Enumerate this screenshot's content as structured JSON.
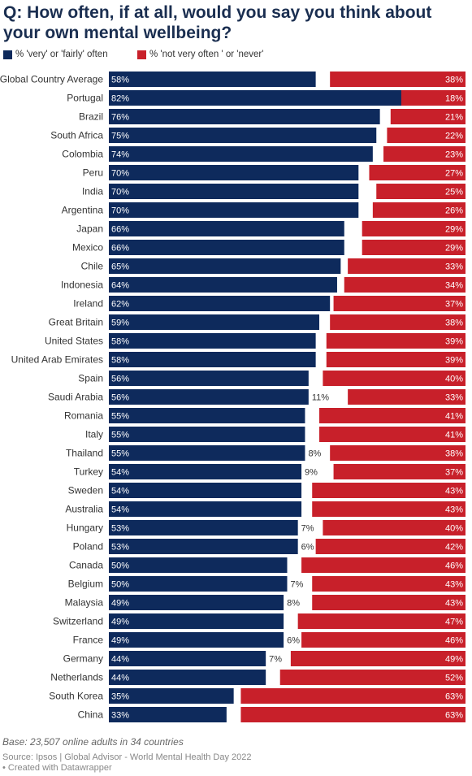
{
  "chart_data": {
    "type": "bar",
    "title": "Q: How often, if at all, would you say you think about your own mental wellbeing?",
    "series": [
      {
        "name": "% 'very' or 'fairly' often",
        "color": "#0e2a5c"
      },
      {
        "name": "% 'not very often ' or 'never'",
        "color": "#c8202a"
      }
    ],
    "rows": [
      {
        "label": "Global Country Average",
        "often": 58,
        "notoften": 38,
        "gap_label": ""
      },
      {
        "label": "Portugal",
        "often": 82,
        "notoften": 18,
        "gap_label": ""
      },
      {
        "label": "Brazil",
        "often": 76,
        "notoften": 21,
        "gap_label": ""
      },
      {
        "label": "South Africa",
        "often": 75,
        "notoften": 22,
        "gap_label": ""
      },
      {
        "label": "Colombia",
        "often": 74,
        "notoften": 23,
        "gap_label": ""
      },
      {
        "label": "Peru",
        "often": 70,
        "notoften": 27,
        "gap_label": ""
      },
      {
        "label": "India",
        "often": 70,
        "notoften": 25,
        "gap_label": ""
      },
      {
        "label": "Argentina",
        "often": 70,
        "notoften": 26,
        "gap_label": ""
      },
      {
        "label": "Japan",
        "often": 66,
        "notoften": 29,
        "gap_label": ""
      },
      {
        "label": "Mexico",
        "often": 66,
        "notoften": 29,
        "gap_label": ""
      },
      {
        "label": "Chile",
        "often": 65,
        "notoften": 33,
        "gap_label": ""
      },
      {
        "label": "Indonesia",
        "often": 64,
        "notoften": 34,
        "gap_label": ""
      },
      {
        "label": "Ireland",
        "often": 62,
        "notoften": 37,
        "gap_label": ""
      },
      {
        "label": "Great Britain",
        "often": 59,
        "notoften": 38,
        "gap_label": ""
      },
      {
        "label": "United States",
        "often": 58,
        "notoften": 39,
        "gap_label": ""
      },
      {
        "label": "United Arab Emirates",
        "often": 58,
        "notoften": 39,
        "gap_label": ""
      },
      {
        "label": "Spain",
        "often": 56,
        "notoften": 40,
        "gap_label": ""
      },
      {
        "label": "Saudi Arabia",
        "often": 56,
        "notoften": 33,
        "gap_label": "11%"
      },
      {
        "label": "Romania",
        "often": 55,
        "notoften": 41,
        "gap_label": ""
      },
      {
        "label": "Italy",
        "often": 55,
        "notoften": 41,
        "gap_label": ""
      },
      {
        "label": "Thailand",
        "often": 55,
        "notoften": 38,
        "gap_label": "8%"
      },
      {
        "label": "Turkey",
        "often": 54,
        "notoften": 37,
        "gap_label": "9%"
      },
      {
        "label": "Sweden",
        "often": 54,
        "notoften": 43,
        "gap_label": ""
      },
      {
        "label": "Australia",
        "often": 54,
        "notoften": 43,
        "gap_label": ""
      },
      {
        "label": "Hungary",
        "often": 53,
        "notoften": 40,
        "gap_label": "7%"
      },
      {
        "label": "Poland",
        "often": 53,
        "notoften": 42,
        "gap_label": "6%"
      },
      {
        "label": "Canada",
        "often": 50,
        "notoften": 46,
        "gap_label": ""
      },
      {
        "label": "Belgium",
        "often": 50,
        "notoften": 43,
        "gap_label": "7%"
      },
      {
        "label": "Malaysia",
        "often": 49,
        "notoften": 43,
        "gap_label": "8%"
      },
      {
        "label": "Switzerland",
        "often": 49,
        "notoften": 47,
        "gap_label": ""
      },
      {
        "label": "France",
        "often": 49,
        "notoften": 46,
        "gap_label": "6%"
      },
      {
        "label": "Germany",
        "often": 44,
        "notoften": 49,
        "gap_label": "7%"
      },
      {
        "label": "Netherlands",
        "often": 44,
        "notoften": 52,
        "gap_label": ""
      },
      {
        "label": "South Korea",
        "often": 35,
        "notoften": 63,
        "gap_label": ""
      },
      {
        "label": "China",
        "often": 33,
        "notoften": 63,
        "gap_label": ""
      }
    ]
  },
  "footer": {
    "base": "Base: 23,507 online adults in 34 countries",
    "source": "Source: Ipsos | Global Advisor - World Mental Health Day 2022",
    "credit": "• Created with Datawrapper"
  }
}
